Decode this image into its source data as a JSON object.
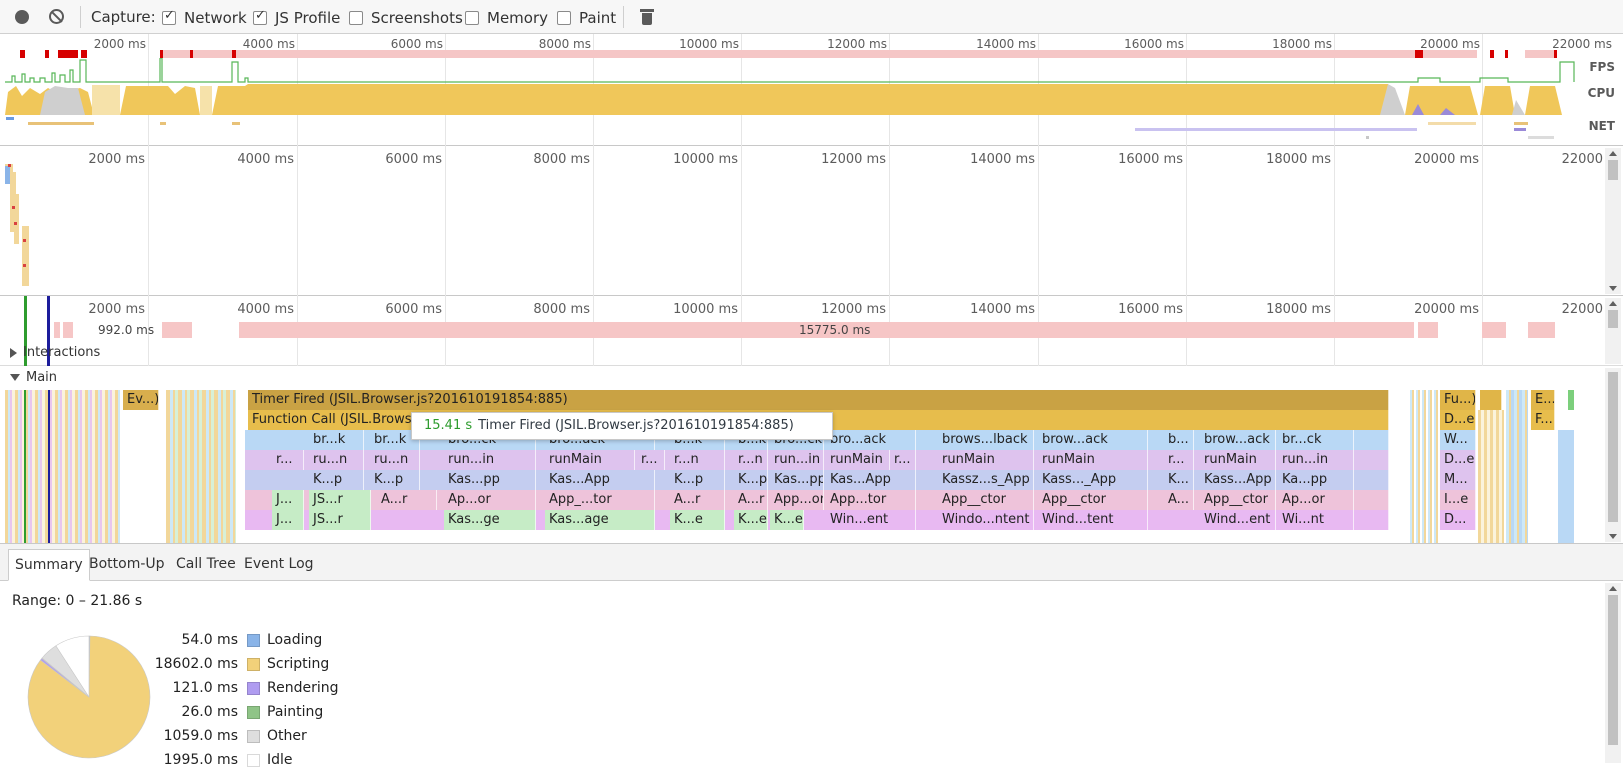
{
  "toolbar": {
    "capture_label": "Capture:",
    "options": [
      {
        "label": "Network",
        "checked": true
      },
      {
        "label": "JS Profile",
        "checked": true
      },
      {
        "label": "Screenshots",
        "checked": false
      },
      {
        "label": "Memory",
        "checked": false
      },
      {
        "label": "Paint",
        "checked": false
      }
    ],
    "icons": {
      "record": "record-icon",
      "clear": "clear-icon",
      "trash": "trash-icon"
    }
  },
  "overview": {
    "ticks": [
      "2000 ms",
      "4000 ms",
      "6000 ms",
      "8000 ms",
      "10000 ms",
      "12000 ms",
      "14000 ms",
      "16000 ms",
      "18000 ms",
      "20000 ms",
      "22000 ms"
    ],
    "tracks": {
      "fps": "FPS",
      "cpu": "CPU",
      "net": "NET"
    }
  },
  "network": {
    "ticks": [
      "2000 ms",
      "4000 ms",
      "6000 ms",
      "8000 ms",
      "10000 ms",
      "12000 ms",
      "14000 ms",
      "16000 ms",
      "18000 ms",
      "20000 ms",
      "22000"
    ]
  },
  "frames": {
    "ticks": [
      "2000 ms",
      "4000 ms",
      "6000 ms",
      "8000 ms",
      "10000 ms",
      "12000 ms",
      "14000 ms",
      "16000 ms",
      "18000 ms",
      "20000 ms",
      "22000"
    ],
    "bar_labels": [
      "992.0 ms",
      "15775.0 ms"
    ],
    "interactions_label": "Interactions"
  },
  "main": {
    "label": "Main",
    "row1": [
      "Ev...)",
      "Timer Fired (JSIL.Browser.js?201610191854:885)",
      "Fu...)",
      "E..."
    ],
    "row2": [
      "Function Call (JSIL.Browser",
      "D...e",
      "F..."
    ],
    "row3": [
      "br...k",
      "br...k",
      "bro...ck",
      "bro...ack",
      "b...k",
      "b...k",
      "bro...ck",
      "bro...ack",
      "brows...lback",
      "brow...ack",
      "b...",
      "brow...ack",
      "br...ck",
      "W..."
    ],
    "row4": [
      "r...",
      "ru...n",
      "ru...n",
      "run...in",
      "runMain",
      "r...",
      "r...n",
      "r...n",
      "run...in",
      "runMain",
      "r...",
      "runMain",
      "runMain",
      "r...",
      "runMain",
      "run...in",
      "D...e"
    ],
    "row5": [
      "K...p",
      "K...p",
      "Kas...pp",
      "Kas...App",
      "K...p",
      "K...p",
      "Kas...pp",
      "Kas...App",
      "Kassz...s_App",
      "Kass..._App",
      "K...",
      "Kass...App",
      "Ka...pp",
      "M..."
    ],
    "row6": [
      "J...",
      "JS...r",
      "A...r",
      "Ap...or",
      "App_...tor",
      "A...r",
      "A...r",
      "App...or",
      "App...tor",
      "App__ctor",
      "App__ctor",
      "A...",
      "App__ctor",
      "Ap...or",
      "I...e"
    ],
    "row7": [
      "J...",
      "JS...r",
      "Kas...ge",
      "Kas...age",
      "K...e",
      "K...e",
      "K...e",
      "Win...ent",
      "Windo...ntent",
      "Wind...tent",
      "Wind...ent",
      "Wi...nt",
      "D..."
    ]
  },
  "tooltip": {
    "duration": "15.41 s",
    "name": "Timer Fired (JSIL.Browser.js?201610191854:885)"
  },
  "tabs": [
    "Summary",
    "Bottom-Up",
    "Call Tree",
    "Event Log"
  ],
  "summary": {
    "range": "Range: 0 – 21.86 s",
    "items": [
      {
        "value": "54.0 ms",
        "label": "Loading",
        "color": "#8ab4e8"
      },
      {
        "value": "18602.0 ms",
        "label": "Scripting",
        "color": "#f2d17a"
      },
      {
        "value": "121.0 ms",
        "label": "Rendering",
        "color": "#af9cf0"
      },
      {
        "value": "26.0 ms",
        "label": "Painting",
        "color": "#8fc487"
      },
      {
        "value": "1059.0 ms",
        "label": "Other",
        "color": "#dedede"
      },
      {
        "value": "1995.0 ms",
        "label": "Idle",
        "color": "#ffffff"
      }
    ]
  }
}
